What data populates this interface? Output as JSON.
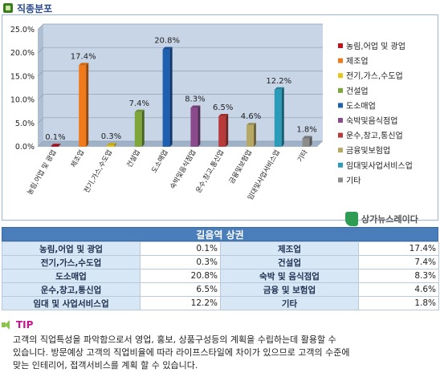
{
  "section": {
    "title": "직종분포",
    "icon": "category-icon"
  },
  "chart_data": {
    "type": "bar",
    "categories": [
      "농림,어업 및 광업",
      "제조업",
      "전기,가스,수도업",
      "건설업",
      "도소매업",
      "숙박및음식점업",
      "운수,창고,통신업",
      "금융및보험업",
      "임대및사업서비스업",
      "기타"
    ],
    "values": [
      0.1,
      17.4,
      0.3,
      7.4,
      20.8,
      8.3,
      6.5,
      4.6,
      12.2,
      1.8
    ],
    "value_labels": [
      "0.1%",
      "17.4%",
      "0.3%",
      "7.4%",
      "20.8%",
      "8.3%",
      "6.5%",
      "4.6%",
      "12.2%",
      "1.8%"
    ],
    "colors": [
      "#c0121f",
      "#f07a1a",
      "#e6c619",
      "#7fa63b",
      "#1f5fb0",
      "#8a4a8c",
      "#b93a3a",
      "#b8a866",
      "#2a9bb8",
      "#8c8c8c"
    ],
    "y_ticks": [
      "0.0%",
      "5.0%",
      "10.0%",
      "15.0%",
      "20.0%",
      "25.0%"
    ],
    "ylim": [
      0,
      25
    ],
    "grid": true,
    "legend_position": "right",
    "legend": [
      "농림,어업 및 광업",
      "제조업",
      "전기,가스,수도업",
      "건설업",
      "도소매업",
      "숙박및음식점업",
      "운수,창고,통신업",
      "금융및보험업",
      "임대및사업서비스업",
      "기타"
    ],
    "title": "",
    "xlabel": "",
    "ylabel": ""
  },
  "brand": {
    "name": "상가뉴스레이다"
  },
  "table": {
    "title": "길음역 상권",
    "rows": [
      [
        {
          "label": "농림,어업 및 광업",
          "value": "0.1%"
        },
        {
          "label": "제조업",
          "value": "17.4%"
        }
      ],
      [
        {
          "label": "전기,가스,수도업",
          "value": "0.3%"
        },
        {
          "label": "건설업",
          "value": "7.4%"
        }
      ],
      [
        {
          "label": "도소매업",
          "value": "20.8%"
        },
        {
          "label": "숙박 및 음식점업",
          "value": "8.3%"
        }
      ],
      [
        {
          "label": "운수,창고,통신업",
          "value": "6.5%"
        },
        {
          "label": "금융 및 보험업",
          "value": "4.6%"
        }
      ],
      [
        {
          "label": "임대 및 사업서비스업",
          "value": "12.2%"
        },
        {
          "label": "기타",
          "value": "1.8%"
        }
      ]
    ]
  },
  "tip": {
    "label": "TIP",
    "lines": [
      "고객의 직업특성을 파악함으로서 영업, 홍보, 상품구성등의 계획을 수립하는데 활용할 수",
      "있습니다. 방문예상 고객의 직업비율에 따라 라이프스타일에 차이가 있으므로 고객의 수준에",
      "맞는 인테리어, 접객서비스를 계획 할 수 있습니다."
    ]
  }
}
